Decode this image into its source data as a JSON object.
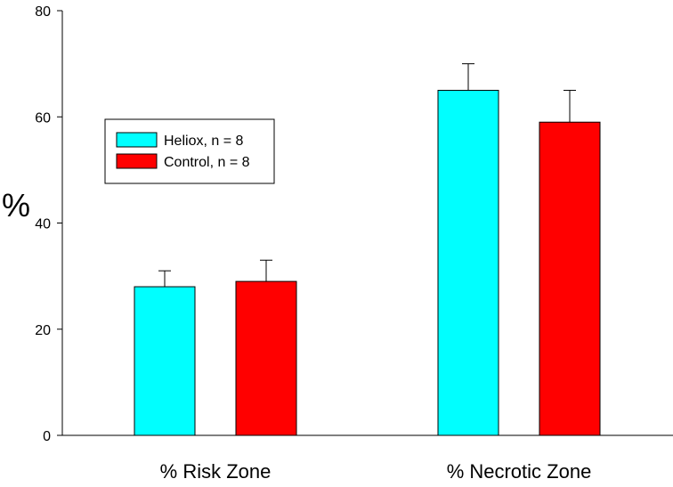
{
  "chart_data": {
    "type": "bar",
    "title": "",
    "xlabel": "",
    "ylabel": "%",
    "ylim": [
      0,
      80
    ],
    "yticks": [
      0,
      20,
      40,
      60,
      80
    ],
    "categories": [
      "% Risk Zone",
      "% Necrotic Zone"
    ],
    "series": [
      {
        "name": "Heliox, n = 8",
        "color": "#00ffff",
        "values": [
          28,
          65
        ],
        "error": [
          3,
          5
        ]
      },
      {
        "name": "Control, n = 8",
        "color": "#ff0000",
        "values": [
          29,
          59
        ],
        "error": [
          4,
          6
        ]
      }
    ],
    "legend_position": "left"
  }
}
